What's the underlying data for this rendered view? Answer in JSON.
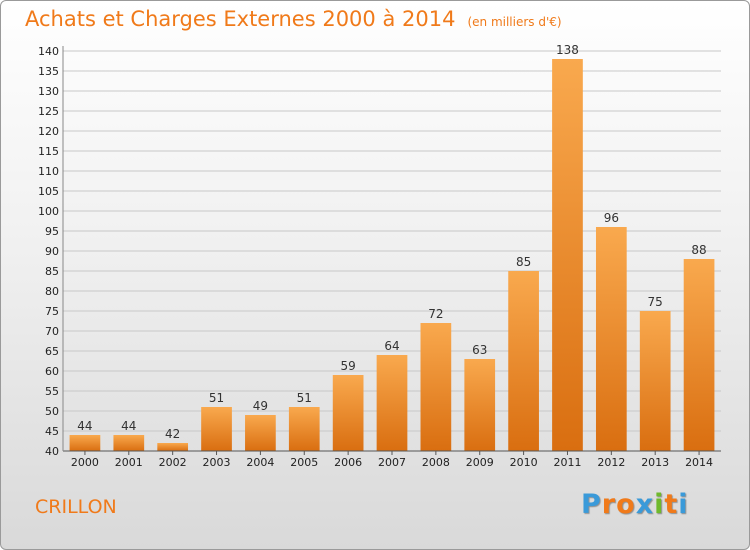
{
  "header": {
    "title": "Achats et Charges Externes 2000 à 2014",
    "subtitle": "(en milliers d'€)"
  },
  "footer": {
    "commune": "CRILLON",
    "logo": [
      "P",
      "r",
      "o",
      "x",
      "i",
      "t",
      "i"
    ]
  },
  "colors": {
    "bar_light": "#f9a94e",
    "bar_dark": "#d96e10",
    "accent": "#f07a1a",
    "grid": "#c8c8c8",
    "logo": [
      "#3a9ad9",
      "#f07a1a",
      "#f07a1a",
      "#3a9ad9",
      "#6fb92c",
      "#f07a1a",
      "#3a9ad9"
    ]
  },
  "chart_data": {
    "type": "bar",
    "categories": [
      "2000",
      "2001",
      "2002",
      "2003",
      "2004",
      "2005",
      "2006",
      "2007",
      "2008",
      "2009",
      "2010",
      "2011",
      "2012",
      "2013",
      "2014"
    ],
    "values": [
      44,
      44,
      42,
      51,
      49,
      51,
      59,
      64,
      72,
      63,
      85,
      138,
      96,
      75,
      88
    ],
    "ylim": [
      40,
      140
    ],
    "yticks": [
      40,
      45,
      50,
      55,
      60,
      65,
      70,
      75,
      80,
      85,
      90,
      95,
      100,
      105,
      110,
      115,
      120,
      125,
      130,
      135,
      140
    ],
    "grid": true
  }
}
